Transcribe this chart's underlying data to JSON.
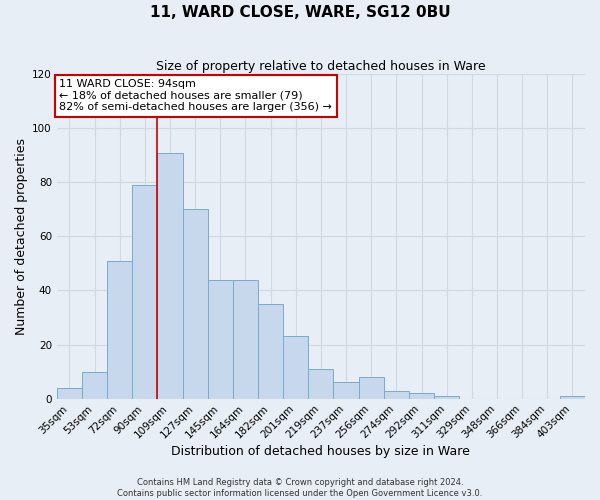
{
  "title": "11, WARD CLOSE, WARE, SG12 0BU",
  "subtitle": "Size of property relative to detached houses in Ware",
  "xlabel": "Distribution of detached houses by size in Ware",
  "ylabel": "Number of detached properties",
  "categories": [
    "35sqm",
    "53sqm",
    "72sqm",
    "90sqm",
    "109sqm",
    "127sqm",
    "145sqm",
    "164sqm",
    "182sqm",
    "201sqm",
    "219sqm",
    "237sqm",
    "256sqm",
    "274sqm",
    "292sqm",
    "311sqm",
    "329sqm",
    "348sqm",
    "366sqm",
    "384sqm",
    "403sqm"
  ],
  "values": [
    4,
    10,
    51,
    79,
    91,
    70,
    44,
    44,
    35,
    23,
    11,
    6,
    8,
    3,
    2,
    1,
    0,
    0,
    0,
    0,
    1
  ],
  "bar_color": "#c8d8ec",
  "bar_edge_color": "#7aaacf",
  "ylim": [
    0,
    120
  ],
  "yticks": [
    0,
    20,
    40,
    60,
    80,
    100,
    120
  ],
  "vline_x_index": 3,
  "vline_color": "#cc0000",
  "annotation_title": "11 WARD CLOSE: 94sqm",
  "annotation_line1": "← 18% of detached houses are smaller (79)",
  "annotation_line2": "82% of semi-detached houses are larger (356) →",
  "box_color": "#cc0000",
  "footer_line1": "Contains HM Land Registry data © Crown copyright and database right 2024.",
  "footer_line2": "Contains public sector information licensed under the Open Government Licence v3.0.",
  "background_color": "#e8eef5",
  "plot_bg_color": "#e8eef5",
  "grid_color": "#d0d8e4",
  "title_fontsize": 11,
  "subtitle_fontsize": 9,
  "annotation_fontsize": 8,
  "xlabel_fontsize": 9,
  "ylabel_fontsize": 9,
  "tick_fontsize": 7.5,
  "footer_fontsize": 6
}
